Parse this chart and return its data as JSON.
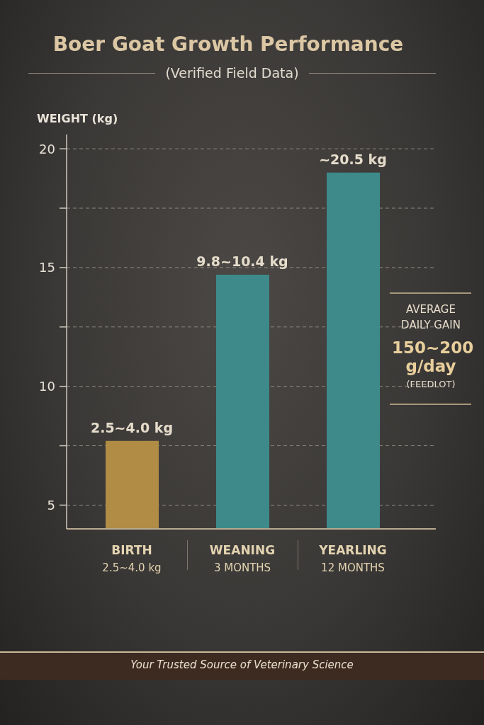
{
  "chart_data": {
    "type": "bar",
    "title": "Boer Goat Growth Performance",
    "subtitle": "(Verified Field Data)",
    "ylabel": "WEIGHT (kg)",
    "categories": [
      "BIRTH\n2.5~4.0 kg",
      "WEANING\n3 MONTHS",
      "YEARLING\n12 MONTHS"
    ],
    "values": [
      7.7,
      14.7,
      19.0
    ],
    "colors": [
      "#b08c45",
      "#3e8a8b",
      "#3e8a8b"
    ],
    "ylim": [
      4,
      20.6
    ],
    "yticks": [
      5,
      {
        "value": 7.5,
        "label": null
      },
      10,
      {
        "value": 12.5,
        "label": null
      },
      15,
      {
        "value": 17.5,
        "label": null
      },
      20
    ],
    "grid": "y",
    "annotations": [
      {
        "text": "2.5~4.0 kg",
        "x": "BIRTH\n2.5~4.0 kg",
        "y": 7.7
      },
      {
        "text": "9.8~10.4 kg",
        "x": "WEANING\n3 MONTHS",
        "y": 14.7
      },
      {
        "text": "~20.5 kg",
        "x": "YEARLING\n12 MONTHS",
        "y": 19.0
      },
      "AVERAGE DAILY GAIN",
      "150~200 g/day",
      "(FEEDLOT)",
      "Your Trusted Source of Veterinary Science"
    ]
  }
}
